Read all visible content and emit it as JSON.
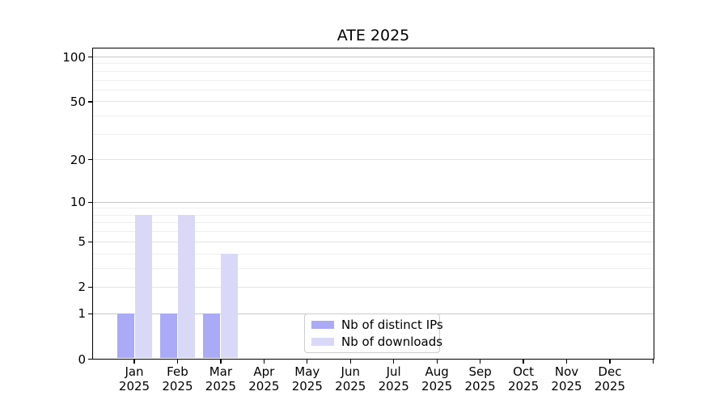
{
  "chart_data": {
    "type": "bar",
    "title": "ATE 2025",
    "categories": [
      "Jan 2025",
      "Feb 2025",
      "Mar 2025",
      "Apr 2025",
      "May 2025",
      "Jun 2025",
      "Jul 2025",
      "Aug 2025",
      "Sep 2025",
      "Oct 2025",
      "Nov 2025",
      "Dec 2025"
    ],
    "category_line1": [
      "Jan",
      "Feb",
      "Mar",
      "Apr",
      "May",
      "Jun",
      "Jul",
      "Aug",
      "Sep",
      "Oct",
      "Nov",
      "Dec"
    ],
    "category_line2": [
      "2025",
      "2025",
      "2025",
      "2025",
      "2025",
      "2025",
      "2025",
      "2025",
      "2025",
      "2025",
      "2025",
      "2025"
    ],
    "series": [
      {
        "name": "Nb of distinct IPs",
        "color": "#aaaaf7",
        "values": [
          1,
          1,
          1,
          0,
          0,
          0,
          0,
          0,
          0,
          0,
          0,
          0
        ]
      },
      {
        "name": "Nb of downloads",
        "color": "#d9d9f7",
        "values": [
          8,
          8,
          4,
          0,
          0,
          0,
          0,
          0,
          0,
          0,
          0,
          0
        ]
      }
    ],
    "xlabel": "",
    "ylabel": "",
    "y_axis": {
      "scale": "log10(1+v)",
      "major_ticks": [
        0,
        1,
        2,
        5,
        10,
        20,
        50,
        100
      ],
      "minor_ticks": [
        3,
        4,
        6,
        7,
        8,
        9,
        30,
        40,
        60,
        70,
        80,
        90
      ],
      "range": [
        0,
        100
      ]
    },
    "legend": {
      "position": "bottom-center"
    },
    "grid": true,
    "colors": {
      "background": "#ffffff",
      "axis": "#000000",
      "grid_emphasized": "#c8c8c8",
      "grid_major": "#e3e3e3",
      "grid_minor": "#efefef",
      "text": "#000000"
    }
  }
}
